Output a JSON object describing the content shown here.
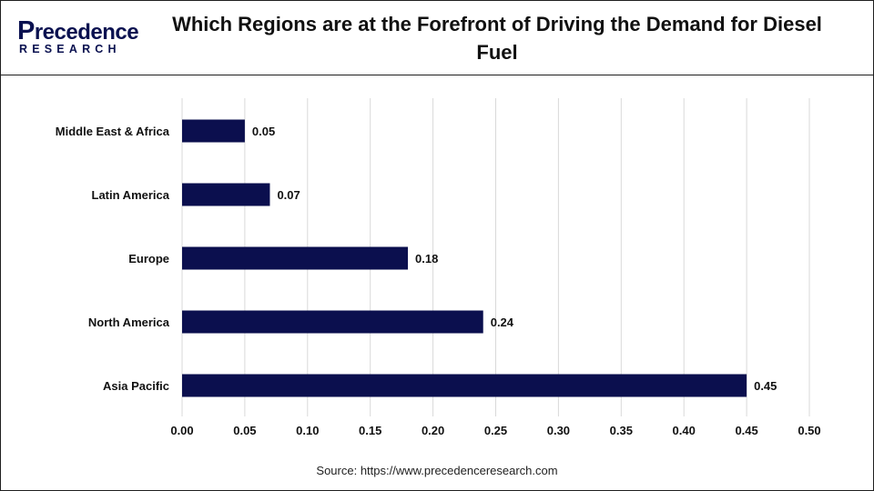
{
  "header": {
    "logo_main_first": "P",
    "logo_main_rest": "recedence",
    "logo_sub": "RESEARCH",
    "title": "Which Regions are at the Forefront of Driving the Demand for Diesel Fuel"
  },
  "footer": {
    "source": "Source: https://www.precedenceresearch.com"
  },
  "colors": {
    "bar": "#0b0f4e",
    "grid": "#d9d9d9",
    "brand": "#0a1150"
  },
  "chart_data": {
    "type": "bar",
    "orientation": "horizontal",
    "title": "Which Regions are at the Forefront of Driving the Demand for Diesel Fuel",
    "categories": [
      "Middle East & Africa",
      "Latin America",
      "Europe",
      "North America",
      "Asia Pacific"
    ],
    "values": [
      0.05,
      0.07,
      0.18,
      0.24,
      0.45
    ],
    "value_labels": [
      "0.05",
      "0.07",
      "0.18",
      "0.24",
      "0.45"
    ],
    "xlim": [
      0,
      0.5
    ],
    "x_ticks": [
      "0.00",
      "0.05",
      "0.10",
      "0.15",
      "0.20",
      "0.25",
      "0.30",
      "0.35",
      "0.40",
      "0.45",
      "0.50"
    ],
    "x_tick_values": [
      0,
      0.05,
      0.1,
      0.15,
      0.2,
      0.25,
      0.3,
      0.35,
      0.4,
      0.45,
      0.5
    ],
    "xlabel": "",
    "ylabel": "",
    "grid": true,
    "legend": "none"
  }
}
